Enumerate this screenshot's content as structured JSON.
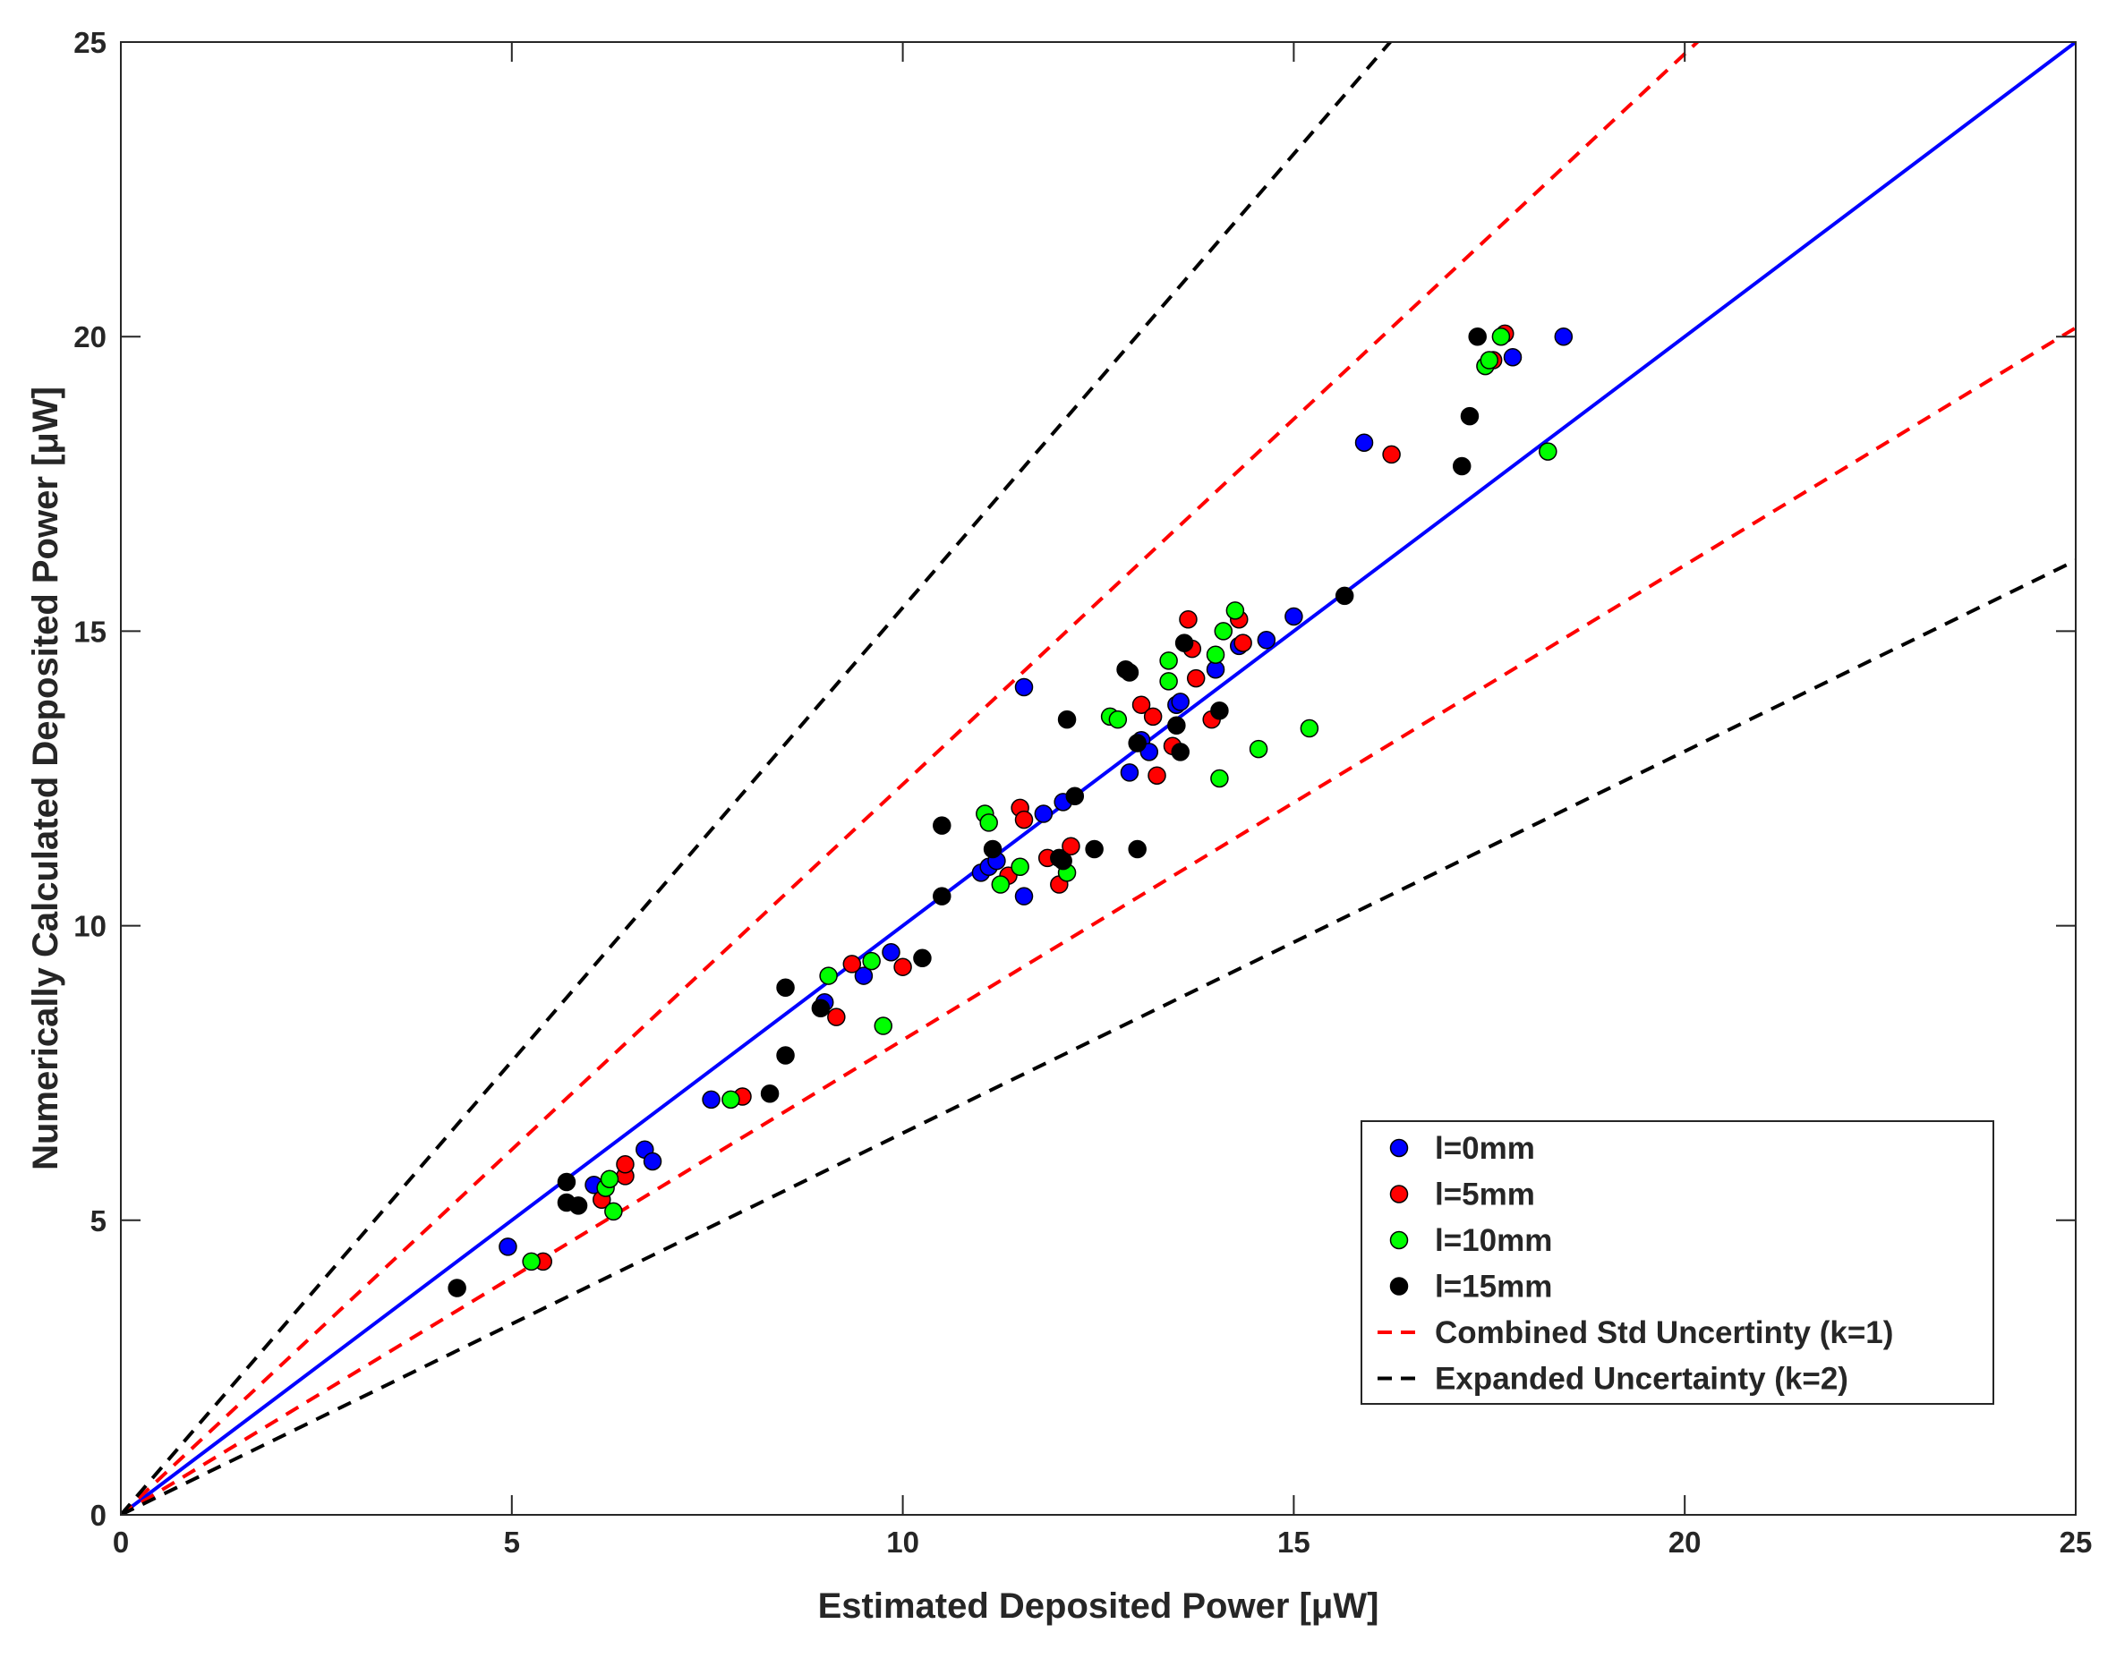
{
  "chart_data": {
    "type": "scatter",
    "title": "",
    "xlabel": "Estimated Deposited Power [μW]",
    "ylabel": "Numerically Calculated Deposited Power [μW]",
    "xlim": [
      0,
      25
    ],
    "ylim": [
      0,
      25
    ],
    "xticks": [
      "0",
      "5",
      "10",
      "15",
      "20",
      "25"
    ],
    "yticks": [
      "0",
      "5",
      "10",
      "15",
      "20",
      "25"
    ],
    "grid": false,
    "legend_position": "bottom-right",
    "series": [
      {
        "name": "l=0mm",
        "color": "#0000ff",
        "points": [
          [
            4.95,
            4.55
          ],
          [
            6.05,
            5.6
          ],
          [
            6.7,
            6.2
          ],
          [
            6.8,
            6.0
          ],
          [
            7.55,
            7.05
          ],
          [
            9.0,
            8.7
          ],
          [
            9.5,
            9.15
          ],
          [
            9.85,
            9.55
          ],
          [
            11.0,
            10.9
          ],
          [
            11.1,
            11.0
          ],
          [
            11.2,
            11.1
          ],
          [
            11.55,
            10.5
          ],
          [
            11.8,
            11.9
          ],
          [
            12.05,
            12.1
          ],
          [
            11.55,
            14.05
          ],
          [
            12.9,
            12.6
          ],
          [
            13.05,
            13.15
          ],
          [
            13.15,
            12.95
          ],
          [
            13.5,
            13.75
          ],
          [
            13.55,
            13.8
          ],
          [
            14.0,
            14.35
          ],
          [
            14.3,
            14.75
          ],
          [
            14.65,
            14.85
          ],
          [
            15.0,
            15.25
          ],
          [
            15.9,
            18.2
          ],
          [
            17.8,
            19.65
          ],
          [
            18.45,
            20.0
          ]
        ]
      },
      {
        "name": "l=5mm",
        "color": "#ff0000",
        "points": [
          [
            5.4,
            4.3
          ],
          [
            6.15,
            5.35
          ],
          [
            6.45,
            5.75
          ],
          [
            6.45,
            5.95
          ],
          [
            7.95,
            7.1
          ],
          [
            9.15,
            8.45
          ],
          [
            9.35,
            9.35
          ],
          [
            10.0,
            9.3
          ],
          [
            11.35,
            10.85
          ],
          [
            11.5,
            12.0
          ],
          [
            11.55,
            11.8
          ],
          [
            11.85,
            11.15
          ],
          [
            12.0,
            10.7
          ],
          [
            12.15,
            11.35
          ],
          [
            13.05,
            13.75
          ],
          [
            13.2,
            13.55
          ],
          [
            13.25,
            12.55
          ],
          [
            13.45,
            13.05
          ],
          [
            13.65,
            15.2
          ],
          [
            13.7,
            14.7
          ],
          [
            13.75,
            14.2
          ],
          [
            13.95,
            13.5
          ],
          [
            14.3,
            15.2
          ],
          [
            14.35,
            14.8
          ],
          [
            16.25,
            18.0
          ],
          [
            17.55,
            19.6
          ],
          [
            17.7,
            20.05
          ]
        ]
      },
      {
        "name": "l=10mm",
        "color": "#00ff00",
        "points": [
          [
            5.25,
            4.3
          ],
          [
            6.2,
            5.55
          ],
          [
            6.25,
            5.7
          ],
          [
            6.3,
            5.15
          ],
          [
            7.8,
            7.05
          ],
          [
            9.05,
            9.15
          ],
          [
            9.6,
            9.4
          ],
          [
            9.75,
            8.3
          ],
          [
            11.05,
            11.9
          ],
          [
            11.1,
            11.75
          ],
          [
            11.25,
            10.7
          ],
          [
            11.5,
            11.0
          ],
          [
            12.1,
            10.9
          ],
          [
            12.65,
            13.55
          ],
          [
            12.75,
            13.5
          ],
          [
            13.4,
            14.5
          ],
          [
            13.4,
            14.15
          ],
          [
            14.0,
            14.6
          ],
          [
            14.05,
            12.5
          ],
          [
            14.1,
            15.0
          ],
          [
            14.25,
            15.35
          ],
          [
            14.55,
            13.0
          ],
          [
            15.2,
            13.35
          ],
          [
            17.45,
            19.5
          ],
          [
            17.5,
            19.6
          ],
          [
            17.65,
            20.0
          ],
          [
            18.25,
            18.05
          ]
        ]
      },
      {
        "name": "l=15mm",
        "color": "#000000",
        "points": [
          [
            4.3,
            3.85
          ],
          [
            5.7,
            5.65
          ],
          [
            5.7,
            5.3
          ],
          [
            5.85,
            5.25
          ],
          [
            8.5,
            8.95
          ],
          [
            8.5,
            7.8
          ],
          [
            8.3,
            7.15
          ],
          [
            8.95,
            8.6
          ],
          [
            10.25,
            9.45
          ],
          [
            10.5,
            11.7
          ],
          [
            10.5,
            10.5
          ],
          [
            11.15,
            11.3
          ],
          [
            12.0,
            11.15
          ],
          [
            12.05,
            11.1
          ],
          [
            12.1,
            13.5
          ],
          [
            12.2,
            12.2
          ],
          [
            12.45,
            11.3
          ],
          [
            12.85,
            14.35
          ],
          [
            12.9,
            14.3
          ],
          [
            13.0,
            13.1
          ],
          [
            13.0,
            11.3
          ],
          [
            13.5,
            13.4
          ],
          [
            13.55,
            12.95
          ],
          [
            13.6,
            14.8
          ],
          [
            14.05,
            13.65
          ],
          [
            15.65,
            15.6
          ],
          [
            17.15,
            17.8
          ],
          [
            17.25,
            18.65
          ],
          [
            17.35,
            20.0
          ]
        ]
      }
    ],
    "lines": [
      {
        "name": "identity",
        "color": "#0000ff",
        "style": "solid",
        "slope": 1.0,
        "in_legend": false
      },
      {
        "name": "Combined Std Uncertinty (k=1)",
        "color": "#ff0000",
        "style": "dashed",
        "slope": 1.24,
        "in_legend": true
      },
      {
        "name": "Combined Std Uncertinty (k=1)",
        "color": "#ff0000",
        "style": "dashed",
        "slope": 0.806,
        "in_legend": false
      },
      {
        "name": "Expanded Uncertainty (k=2)",
        "color": "#000000",
        "style": "dashed",
        "slope": 1.54,
        "in_legend": true
      },
      {
        "name": "Expanded Uncertainty (k=2)",
        "color": "#000000",
        "style": "dashed",
        "slope": 0.648,
        "in_legend": false
      }
    ],
    "legend": [
      {
        "label": "l=0mm",
        "kind": "marker",
        "color": "#0000ff"
      },
      {
        "label": "l=5mm",
        "kind": "marker",
        "color": "#ff0000"
      },
      {
        "label": "l=10mm",
        "kind": "marker",
        "color": "#00ff00"
      },
      {
        "label": "l=15mm",
        "kind": "marker",
        "color": "#000000"
      },
      {
        "label": "Combined Std Uncertinty (k=1)",
        "kind": "line",
        "color": "#ff0000"
      },
      {
        "label": "Expanded Uncertainty (k=2)",
        "kind": "line",
        "color": "#000000"
      }
    ]
  }
}
